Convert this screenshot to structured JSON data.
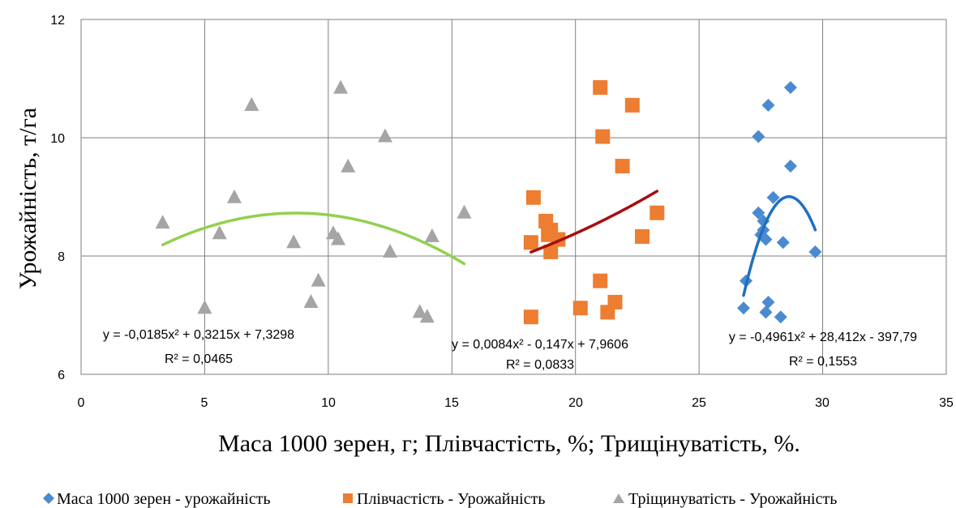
{
  "chart_data": {
    "type": "scatter",
    "xlabel": "Маса 1000 зерен, г; Плівчастість, %; Трищінуватість, %.",
    "ylabel": "Урожайність, т/га",
    "xlim": [
      0,
      35
    ],
    "ylim": [
      6,
      12
    ],
    "xticks": [
      "0",
      "5",
      "10",
      "15",
      "20",
      "25",
      "30",
      "35"
    ],
    "yticks": [
      "6",
      "8",
      "10",
      "12"
    ],
    "grid": true,
    "legend_position": "bottom",
    "series": [
      {
        "name": "Маса 1000 зерен - урожайність",
        "marker": "diamond",
        "color": "#4a8bd0",
        "trend_color": "#1f6fbf",
        "points": [
          [
            26.8,
            7.12
          ],
          [
            26.9,
            7.58
          ],
          [
            27.4,
            10.02
          ],
          [
            27.4,
            8.73
          ],
          [
            27.5,
            8.36
          ],
          [
            27.6,
            8.59
          ],
          [
            27.6,
            8.44
          ],
          [
            27.7,
            7.05
          ],
          [
            27.7,
            8.28
          ],
          [
            27.8,
            7.22
          ],
          [
            27.8,
            10.55
          ],
          [
            28.0,
            8.99
          ],
          [
            28.3,
            6.97
          ],
          [
            28.4,
            8.23
          ],
          [
            28.7,
            10.85
          ],
          [
            28.7,
            9.52
          ],
          [
            29.7,
            8.07
          ]
        ],
        "trend_x": [
          26.8,
          29.7
        ],
        "coefficients": [
          -0.4961,
          28.412,
          -397.79
        ],
        "equation": "y = -0,4961x² + 28,412x - 397,79",
        "r2": "R² = 0,1553"
      },
      {
        "name": "Плівчастість - Урожайність",
        "marker": "square",
        "color": "#ed7d31",
        "trend_color": "#a80d0d",
        "points": [
          [
            18.2,
            6.97
          ],
          [
            18.2,
            8.23
          ],
          [
            18.3,
            8.99
          ],
          [
            18.8,
            8.59
          ],
          [
            18.9,
            8.36
          ],
          [
            19.0,
            8.44
          ],
          [
            19.0,
            8.07
          ],
          [
            19.3,
            8.28
          ],
          [
            20.2,
            7.12
          ],
          [
            21.0,
            7.58
          ],
          [
            21.0,
            10.85
          ],
          [
            21.1,
            10.02
          ],
          [
            21.3,
            7.05
          ],
          [
            21.6,
            7.22
          ],
          [
            21.9,
            9.52
          ],
          [
            22.3,
            10.55
          ],
          [
            22.7,
            8.33
          ],
          [
            23.3,
            8.73
          ]
        ],
        "trend_x": [
          18.2,
          23.3
        ],
        "coefficients": [
          0.0084,
          -0.147,
          7.9606
        ],
        "equation": "y = 0,0084x² - 0,147x + 7,9606",
        "r2": "R² = 0,0833"
      },
      {
        "name": "Тріщинуватість - Урожайність",
        "marker": "triangle",
        "color": "#a5a5a5",
        "trend_color": "#92d050",
        "points": [
          [
            3.3,
            8.56
          ],
          [
            5.0,
            7.12
          ],
          [
            5.6,
            8.38
          ],
          [
            6.2,
            8.99
          ],
          [
            6.9,
            10.55
          ],
          [
            8.6,
            8.23
          ],
          [
            9.3,
            7.22
          ],
          [
            9.6,
            7.58
          ],
          [
            10.2,
            8.38
          ],
          [
            10.4,
            8.28
          ],
          [
            10.5,
            10.84
          ],
          [
            10.8,
            9.51
          ],
          [
            12.3,
            10.02
          ],
          [
            12.5,
            8.07
          ],
          [
            13.7,
            7.05
          ],
          [
            14.0,
            6.97
          ],
          [
            14.2,
            8.33
          ],
          [
            15.5,
            8.73
          ]
        ],
        "trend_x": [
          3.3,
          15.5
        ],
        "coefficients": [
          -0.0185,
          0.3215,
          7.3298
        ],
        "equation": "y = -0,0185x² + 0,3215x + 7,3298",
        "r2": "R² = 0,0465"
      }
    ]
  }
}
